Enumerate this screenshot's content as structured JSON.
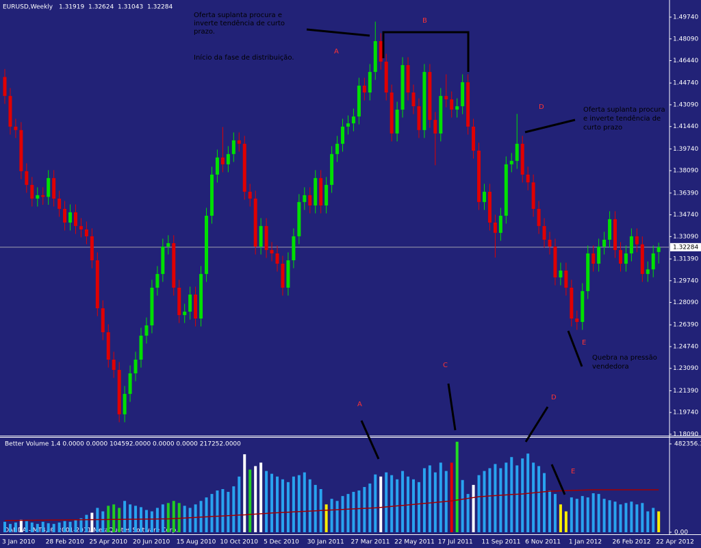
{
  "chart_data": [
    {
      "type": "candlestick",
      "title": "EURUSD,Weekly",
      "categories": [
        "3 Jan 2010",
        null,
        null,
        null,
        null,
        null,
        null,
        null,
        "28 Feb 2010",
        null,
        null,
        null,
        null,
        null,
        null,
        null,
        "25 Apr 2010",
        null,
        null,
        null,
        null,
        null,
        null,
        null,
        "20 Jun 2010",
        null,
        null,
        null,
        null,
        null,
        null,
        null,
        "15 Aug 2010",
        null,
        null,
        null,
        null,
        null,
        null,
        null,
        "10 Oct 2010",
        null,
        null,
        null,
        null,
        null,
        null,
        null,
        "5 Dec 2010",
        null,
        null,
        null,
        null,
        null,
        null,
        null,
        "30 Jan 2011",
        null,
        null,
        null,
        null,
        null,
        null,
        null,
        "27 Mar 2011",
        null,
        null,
        null,
        null,
        null,
        null,
        null,
        "22 May 2011",
        null,
        null,
        null,
        null,
        null,
        null,
        null,
        "17 Jul 2011",
        null,
        null,
        null,
        null,
        null,
        null,
        null,
        "11 Sep 2011",
        null,
        null,
        null,
        null,
        null,
        null,
        null,
        "6 Nov 2011",
        null,
        null,
        null,
        null,
        null,
        null,
        null,
        "1 Jan 2012",
        null,
        null,
        null,
        null,
        null,
        null,
        null,
        "26 Feb 2012",
        null,
        null,
        null,
        null,
        null,
        null,
        null,
        "22 Apr 2012"
      ],
      "open": [
        1.452,
        1.4376,
        1.4143,
        1.4117,
        1.3805,
        1.3701,
        1.3597,
        1.3623,
        1.361,
        1.3753,
        1.3597,
        1.3519,
        1.3415,
        1.3493,
        1.3389,
        1.3363,
        1.3311,
        1.3129,
        1.2765,
        1.2583,
        1.2375,
        1.2297,
        1.196,
        1.2115,
        1.2271,
        1.2375,
        1.2557,
        1.2635,
        1.2921,
        1.3025,
        1.3233,
        1.3259,
        1.2921,
        1.2713,
        1.2739,
        1.2869,
        1.2687,
        1.3025,
        1.3467,
        1.3779,
        1.3909,
        1.3857,
        1.3935,
        1.4039,
        1.4013,
        1.3649,
        1.3597,
        1.3233,
        1.3389,
        1.3207,
        1.3181,
        1.3103,
        1.2921,
        1.3129,
        1.3311,
        1.3571,
        1.3623,
        1.3545,
        1.3753,
        1.3545,
        1.3701,
        1.3935,
        1.4013,
        1.4143,
        1.4168,
        1.422,
        1.4454,
        1.4402,
        1.4558,
        1.4792,
        1.4636,
        1.4402,
        1.4091,
        1.4272,
        1.461,
        1.4402,
        1.4298,
        1.4117,
        1.4558,
        1.4194,
        1.4091,
        1.4376,
        1.435,
        1.4272,
        1.4298,
        1.448,
        1.4143,
        1.3961,
        1.3571,
        1.3649,
        1.3415,
        1.3337,
        1.3467,
        1.3857,
        1.3883,
        1.4013,
        1.3779,
        1.372,
        1.3519,
        1.3389,
        1.3285,
        1.3233,
        1.2999,
        1.3051,
        1.2921,
        1.2687,
        1.2661,
        1.2895,
        1.3181,
        1.3103,
        1.3233,
        1.3285,
        1.3441,
        1.3207,
        1.3103,
        1.3181,
        1.3311,
        1.325,
        1.3025,
        1.306,
        1.31919
      ],
      "high": [
        1.458,
        1.4436,
        1.4203,
        1.4177,
        1.3865,
        1.3761,
        1.3683,
        1.3683,
        1.3813,
        1.3813,
        1.3657,
        1.3579,
        1.3553,
        1.3553,
        1.3449,
        1.3423,
        1.3371,
        1.3189,
        1.2825,
        1.2643,
        1.2435,
        1.2357,
        1.2175,
        1.2331,
        1.2435,
        1.2617,
        1.2695,
        1.2981,
        1.3085,
        1.3293,
        1.3319,
        1.3319,
        1.2981,
        1.2799,
        1.2929,
        1.2929,
        1.3085,
        1.3527,
        1.3839,
        1.3969,
        1.414,
        1.3995,
        1.4099,
        1.4099,
        1.4073,
        1.3709,
        1.3657,
        1.3449,
        1.3449,
        1.3267,
        1.3241,
        1.3163,
        1.3189,
        1.3371,
        1.3631,
        1.3683,
        1.3683,
        1.3813,
        1.3813,
        1.3761,
        1.3995,
        1.4073,
        1.4203,
        1.4228,
        1.428,
        1.4514,
        1.4514,
        1.4618,
        1.494,
        1.4852,
        1.4696,
        1.4462,
        1.4332,
        1.467,
        1.467,
        1.4462,
        1.4358,
        1.4618,
        1.4618,
        1.4254,
        1.4436,
        1.454,
        1.441,
        1.4358,
        1.454,
        1.454,
        1.4203,
        1.4021,
        1.3709,
        1.3709,
        1.3475,
        1.3527,
        1.3917,
        1.3943,
        1.424,
        1.4073,
        1.3839,
        1.378,
        1.3579,
        1.3449,
        1.3345,
        1.3293,
        1.3111,
        1.3111,
        1.2981,
        1.2747,
        1.2955,
        1.3241,
        1.3241,
        1.3293,
        1.3345,
        1.3501,
        1.3501,
        1.3267,
        1.3241,
        1.3371,
        1.3371,
        1.331,
        1.312,
        1.3241,
        1.32624
      ],
      "low": [
        1.4316,
        1.4083,
        1.4057,
        1.3745,
        1.3641,
        1.3537,
        1.3537,
        1.355,
        1.355,
        1.3537,
        1.3459,
        1.3355,
        1.3355,
        1.3329,
        1.3303,
        1.3251,
        1.3069,
        1.2705,
        1.2523,
        1.2315,
        1.2237,
        1.19,
        1.19,
        1.2055,
        1.2211,
        1.2315,
        1.2497,
        1.2575,
        1.2861,
        1.2965,
        1.3173,
        1.2861,
        1.2653,
        1.2653,
        1.2679,
        1.2627,
        1.2627,
        1.2965,
        1.3407,
        1.3719,
        1.3797,
        1.3797,
        1.3875,
        1.3953,
        1.3589,
        1.3537,
        1.3173,
        1.3173,
        1.3147,
        1.3121,
        1.3043,
        1.2861,
        1.2861,
        1.3069,
        1.3251,
        1.3511,
        1.3485,
        1.3485,
        1.3485,
        1.3485,
        1.3641,
        1.3875,
        1.3953,
        1.4083,
        1.4108,
        1.416,
        1.4342,
        1.4342,
        1.4498,
        1.4576,
        1.4342,
        1.4031,
        1.4031,
        1.4212,
        1.4342,
        1.4238,
        1.4057,
        1.4057,
        1.4134,
        1.385,
        1.4031,
        1.429,
        1.4212,
        1.4212,
        1.4238,
        1.4083,
        1.3901,
        1.3511,
        1.3511,
        1.3355,
        1.315,
        1.3277,
        1.3407,
        1.3797,
        1.3823,
        1.3719,
        1.366,
        1.3459,
        1.3329,
        1.3225,
        1.3173,
        1.2939,
        1.2939,
        1.2861,
        1.2627,
        1.2601,
        1.2601,
        1.2835,
        1.3043,
        1.3043,
        1.3173,
        1.3225,
        1.3147,
        1.3043,
        1.3043,
        1.3121,
        1.319,
        1.2965,
        1.2965,
        1.3,
        1.31043
      ],
      "close": [
        1.4376,
        1.4143,
        1.4117,
        1.3805,
        1.3701,
        1.3597,
        1.3623,
        1.361,
        1.3753,
        1.3597,
        1.3519,
        1.3415,
        1.3493,
        1.3389,
        1.3363,
        1.3311,
        1.3129,
        1.2765,
        1.2583,
        1.2375,
        1.2297,
        1.196,
        1.2115,
        1.2271,
        1.2375,
        1.2557,
        1.2635,
        1.2921,
        1.3025,
        1.3233,
        1.3259,
        1.2921,
        1.2713,
        1.2739,
        1.2869,
        1.2687,
        1.3025,
        1.3467,
        1.3779,
        1.3909,
        1.3857,
        1.3935,
        1.4039,
        1.4013,
        1.3649,
        1.3597,
        1.3233,
        1.3389,
        1.3207,
        1.3181,
        1.3103,
        1.2921,
        1.3129,
        1.3311,
        1.3571,
        1.3623,
        1.3545,
        1.3753,
        1.3545,
        1.3701,
        1.3935,
        1.4013,
        1.4143,
        1.4168,
        1.422,
        1.4454,
        1.4402,
        1.4558,
        1.4792,
        1.4636,
        1.4402,
        1.4091,
        1.4272,
        1.461,
        1.4402,
        1.4298,
        1.4117,
        1.4558,
        1.4194,
        1.4091,
        1.4376,
        1.435,
        1.4272,
        1.4298,
        1.448,
        1.4143,
        1.3961,
        1.3571,
        1.3649,
        1.3415,
        1.3337,
        1.3467,
        1.3857,
        1.3883,
        1.4013,
        1.3779,
        1.372,
        1.3519,
        1.3389,
        1.3285,
        1.3233,
        1.2999,
        1.3051,
        1.2921,
        1.2687,
        1.2661,
        1.2895,
        1.3181,
        1.3103,
        1.3233,
        1.3285,
        1.3441,
        1.3207,
        1.3103,
        1.3181,
        1.3311,
        1.325,
        1.3025,
        1.306,
        1.3181,
        1.32284
      ],
      "up_color": "#00e000",
      "down_color": "#e00000",
      "price_line_color": "#a0a0b0",
      "ylim": [
        1.1793,
        1.5104
      ],
      "yticks": [
        {
          "value": 1.4974,
          "label": "1.49740"
        },
        {
          "value": 1.4809,
          "label": "1.48090"
        },
        {
          "value": 1.4644,
          "label": "1.46440"
        },
        {
          "value": 1.4474,
          "label": "1.44740"
        },
        {
          "value": 1.4309,
          "label": "1.43090"
        },
        {
          "value": 1.4144,
          "label": "1.41440"
        },
        {
          "value": 1.3974,
          "label": "1.39740"
        },
        {
          "value": 1.3809,
          "label": "1.38090"
        },
        {
          "value": 1.3639,
          "label": "1.36390"
        },
        {
          "value": 1.3474,
          "label": "1.34740"
        },
        {
          "value": 1.3309,
          "label": "1.33090"
        },
        {
          "value": 1.3139,
          "label": "1.31390"
        },
        {
          "value": 1.2974,
          "label": "1.29740"
        },
        {
          "value": 1.2809,
          "label": "1.28090"
        },
        {
          "value": 1.2639,
          "label": "1.26390"
        },
        {
          "value": 1.2474,
          "label": "1.24740"
        },
        {
          "value": 1.2309,
          "label": "1.23090"
        },
        {
          "value": 1.2139,
          "label": "1.21390"
        },
        {
          "value": 1.1974,
          "label": "1.19740"
        },
        {
          "value": 1.1809,
          "label": "1.18090"
        }
      ],
      "annotations": {
        "note_top": [
          "Oferta suplanta procura e",
          "inverte tendência de curto",
          "prazo."
        ],
        "note_top2": "Início da fase de distribuição.",
        "note_right": [
          "Oferta suplanta procura",
          "e inverte tendência de",
          "curto prazo"
        ],
        "note_bottom": [
          "Quebra na pressão",
          "vendedora"
        ],
        "letters": [
          "A",
          "B",
          "D",
          "E"
        ]
      }
    },
    {
      "type": "bar",
      "title": "Better Volume 1.4 0.0000 0.0000 104592.0000 0.0000 0.0000 217252.0000",
      "values": [
        57000,
        45600,
        53200,
        68400,
        60800,
        53200,
        45600,
        57000,
        49400,
        45600,
        53200,
        60800,
        57000,
        68400,
        76000,
        95000,
        106400,
        133000,
        114000,
        144400,
        152000,
        133000,
        171000,
        152000,
        144400,
        136800,
        121600,
        114000,
        133000,
        152000,
        159600,
        171000,
        159600,
        144400,
        133000,
        152000,
        171000,
        190000,
        209000,
        228000,
        235600,
        220400,
        250800,
        304000,
        425600,
        342000,
        361000,
        380000,
        334400,
        319200,
        304000,
        288800,
        273600,
        304000,
        311600,
        326800,
        288800,
        258400,
        235600,
        152000,
        182400,
        171000,
        197600,
        209000,
        220400,
        228000,
        247000,
        266000,
        315400,
        304000,
        326800,
        311600,
        288800,
        334400,
        304000,
        288800,
        273600,
        349600,
        364800,
        326800,
        380000,
        334400,
        380000,
        494000,
        285000,
        209000,
        258400,
        311600,
        334400,
        349600,
        372400,
        349600,
        380000,
        410400,
        364800,
        402800,
        429400,
        380000,
        361000,
        323000,
        228000,
        209000,
        152000,
        114000,
        190000,
        182400,
        197600,
        190000,
        212800,
        209000,
        182400,
        174800,
        167200,
        152000,
        159600,
        167200,
        152000,
        159600,
        114000,
        133000,
        114000
      ],
      "colors": [
        "#29a3ef",
        "#29a3ef",
        "#29a3ef",
        "#ffffff",
        "#29a3ef",
        "#29a3ef",
        "#29a3ef",
        "#29a3ef",
        "#29a3ef",
        "#29a3ef",
        "#29a3ef",
        "#29a3ef",
        "#29a3ef",
        "#29a3ef",
        "#29a3ef",
        "#29a3ef",
        "#ffffff",
        "#29a3ef",
        "#29a3ef",
        "#22cc22",
        "#22cc22",
        "#22cc22",
        "#29a3ef",
        "#29a3ef",
        "#29a3ef",
        "#29a3ef",
        "#29a3ef",
        "#29a3ef",
        "#29a3ef",
        "#29a3ef",
        "#22cc22",
        "#22cc22",
        "#22cc22",
        "#29a3ef",
        "#29a3ef",
        "#29a3ef",
        "#29a3ef",
        "#29a3ef",
        "#29a3ef",
        "#29a3ef",
        "#29a3ef",
        "#29a3ef",
        "#29a3ef",
        "#29a3ef",
        "#ffffff",
        "#22cc22",
        "#ffffff",
        "#ffffff",
        "#29a3ef",
        "#29a3ef",
        "#29a3ef",
        "#29a3ef",
        "#29a3ef",
        "#29a3ef",
        "#29a3ef",
        "#29a3ef",
        "#29a3ef",
        "#29a3ef",
        "#29a3ef",
        "#ffee00",
        "#29a3ef",
        "#29a3ef",
        "#29a3ef",
        "#29a3ef",
        "#29a3ef",
        "#29a3ef",
        "#29a3ef",
        "#29a3ef",
        "#29a3ef",
        "#ffffff",
        "#29a3ef",
        "#29a3ef",
        "#29a3ef",
        "#29a3ef",
        "#29a3ef",
        "#29a3ef",
        "#29a3ef",
        "#29a3ef",
        "#29a3ef",
        "#29a3ef",
        "#29a3ef",
        "#29a3ef",
        "#e00000",
        "#22dd22",
        "#29a3ef",
        "#29a3ef",
        "#ffffff",
        "#29a3ef",
        "#29a3ef",
        "#29a3ef",
        "#29a3ef",
        "#29a3ef",
        "#29a3ef",
        "#29a3ef",
        "#29a3ef",
        "#29a3ef",
        "#29a3ef",
        "#29a3ef",
        "#29a3ef",
        "#29a3ef",
        "#29a3ef",
        "#29a3ef",
        "#ffee00",
        "#ffee00",
        "#29a3ef",
        "#29a3ef",
        "#29a3ef",
        "#29a3ef",
        "#29a3ef",
        "#29a3ef",
        "#29a3ef",
        "#29a3ef",
        "#29a3ef",
        "#29a3ef",
        "#29a3ef",
        "#29a3ef",
        "#29a3ef",
        "#29a3ef",
        "#29a3ef",
        "#29a3ef",
        "#ffee00"
      ],
      "ma": {
        "color": "#a00000",
        "values": [
          64000,
          64300,
          64600,
          64900,
          65200,
          65500,
          65800,
          66100,
          66400,
          66700,
          67000,
          67300,
          67600,
          67900,
          68200,
          68500,
          68800,
          69100,
          69400,
          69700,
          70000,
          70300,
          70600,
          70900,
          71200,
          71500,
          71800,
          72100,
          72400,
          72700,
          73000,
          74600,
          76200,
          77800,
          79400,
          81000,
          82600,
          84200,
          85800,
          87400,
          89000,
          90600,
          92200,
          93800,
          95000,
          97000,
          99000,
          101000,
          103000,
          105000,
          106500,
          108000,
          109500,
          111000,
          112500,
          114000,
          115500,
          117000,
          118500,
          120000,
          121500,
          123000,
          124500,
          126000,
          127500,
          129000,
          130500,
          132000,
          133000,
          135700,
          138400,
          141100,
          143800,
          146500,
          149200,
          151900,
          154600,
          157300,
          160000,
          162700,
          165400,
          168100,
          171000,
          175600,
          180200,
          184800,
          189400,
          194000,
          196000,
          198000,
          200000,
          202000,
          204000,
          206000,
          207500,
          209000,
          212000,
          215000,
          218000,
          221000,
          224000,
          225000,
          226000,
          227000,
          228000,
          229000,
          230000,
          231000,
          232000,
          232000,
          232000,
          232000,
          232000,
          232000,
          232000,
          232000,
          232000,
          232000,
          232000,
          232000,
          232000
        ]
      },
      "ylim": [
        0,
        519700
      ],
      "yticks": [
        482356.3,
        {
          "value": 0,
          "label": "0.00"
        }
      ],
      "footer": "OANDA - MT4, © 2001-2011 MetaQuotes Software Corp.",
      "annotations": {
        "letters": [
          "A",
          "C",
          "D",
          "E"
        ]
      }
    }
  ]
}
